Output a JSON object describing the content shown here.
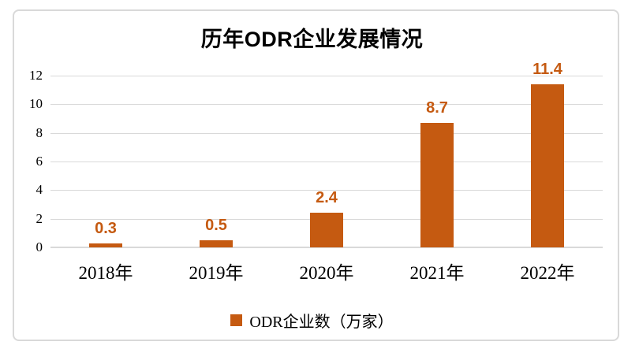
{
  "chart_data": {
    "type": "bar",
    "title": "历年ODR企业发展情况",
    "categories": [
      "2018年",
      "2019年",
      "2020年",
      "2021年",
      "2022年"
    ],
    "series": [
      {
        "name": "ODR企业数（万家）",
        "values": [
          0.3,
          0.5,
          2.4,
          8.7,
          11.4
        ]
      }
    ],
    "data_labels": [
      "0.3",
      "0.5",
      "2.4",
      "8.7",
      "11.4"
    ],
    "legend_label": "ODR企业数（万家）",
    "legend_position": "bottom",
    "xlabel": "",
    "ylabel": "",
    "ylim": [
      0,
      12
    ],
    "yticks": [
      0,
      2,
      4,
      6,
      8,
      10,
      12
    ],
    "grid": true,
    "colors": {
      "bar": "#C55A11",
      "data_label": "#C55A11",
      "gridline": "#D9D9D9",
      "axis_line": "#D9D9D9",
      "text": "#000000",
      "frame_border": "#D9D9D9",
      "background": "#FFFFFF"
    }
  }
}
